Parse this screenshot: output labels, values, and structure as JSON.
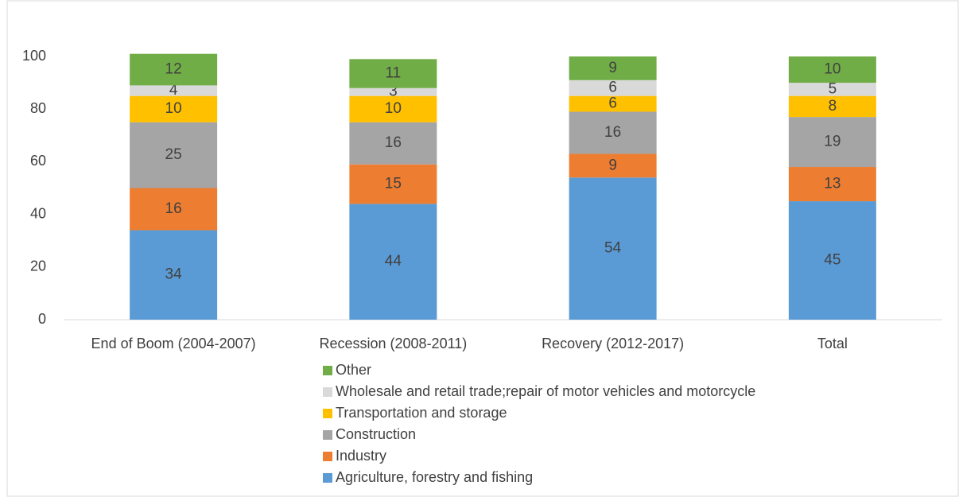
{
  "chart_data": {
    "type": "stacked_bar",
    "categories": [
      "End of Boom (2004-2007)",
      "Recession (2008-2011)",
      "Recovery (2012-2017)",
      "Total"
    ],
    "series": [
      {
        "name": "Agriculture, forestry and fishing",
        "color": "#5b9bd5",
        "values": [
          34,
          44,
          54,
          45
        ]
      },
      {
        "name": "Industry",
        "color": "#ed7d31",
        "values": [
          16,
          15,
          9,
          13
        ]
      },
      {
        "name": "Construction",
        "color": "#a5a5a5",
        "values": [
          25,
          16,
          16,
          19
        ]
      },
      {
        "name": "Transportation and storage",
        "color": "#ffc000",
        "values": [
          10,
          10,
          6,
          8
        ]
      },
      {
        "name": "Wholesale and retail trade;repair of motor vehicles and motorcycle",
        "color": "#d9d9d9",
        "values": [
          4,
          3,
          6,
          5
        ]
      },
      {
        "name": "Other",
        "color": "#70ad47",
        "values": [
          12,
          11,
          9,
          10
        ]
      }
    ],
    "ylim": [
      0,
      100
    ],
    "yticks": [
      0,
      20,
      40,
      60,
      80,
      100
    ],
    "legend": "bottom"
  }
}
